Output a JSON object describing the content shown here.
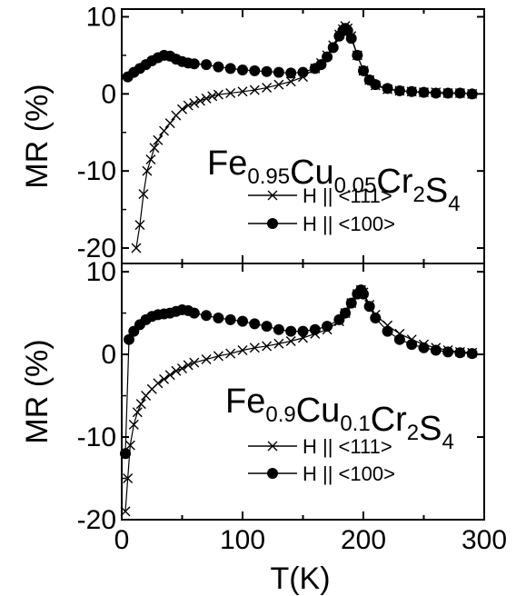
{
  "chart_data": [
    {
      "type": "scatter",
      "panel": "top",
      "formula": {
        "parts": [
          {
            "t": "Fe",
            "sub": false
          },
          {
            "t": "0.95",
            "sub": true
          },
          {
            "t": "Cu",
            "sub": false
          },
          {
            "t": "0.05",
            "sub": true
          },
          {
            "t": "Cr",
            "sub": false
          },
          {
            "t": "2",
            "sub": true
          },
          {
            "t": "S",
            "sub": false
          },
          {
            "t": "4",
            "sub": true
          }
        ]
      },
      "ylabel": "MR (%)",
      "xlim": [
        0,
        300
      ],
      "ylim": [
        -22,
        11
      ],
      "yticks": [
        10,
        0,
        -10,
        -20
      ],
      "yticklabels": [
        "10",
        "0",
        "-10",
        "-20"
      ],
      "legend": [
        {
          "label": "H || <111>",
          "marker": "x"
        },
        {
          "label": "H || <100>",
          "marker": "circle"
        }
      ],
      "legend_position": "right",
      "series": [
        {
          "name": "H || <111>",
          "marker": "x",
          "x": [
            12,
            15,
            18,
            21,
            24,
            27,
            30,
            35,
            40,
            45,
            50,
            55,
            60,
            65,
            70,
            75,
            80,
            90,
            100,
            110,
            120,
            130,
            140,
            150,
            160,
            165,
            170,
            175,
            180,
            183,
            185,
            187,
            190,
            195,
            200,
            205,
            210,
            220,
            230,
            240,
            250,
            260,
            270,
            280,
            290
          ],
          "y": [
            -20,
            -17,
            -13,
            -10,
            -8.5,
            -7,
            -6,
            -4.8,
            -3.8,
            -2.8,
            -2,
            -1.5,
            -1.2,
            -0.9,
            -0.6,
            -0.3,
            -0.1,
            0.1,
            0.3,
            0.5,
            0.8,
            1.2,
            1.6,
            2.2,
            3.3,
            4,
            5,
            6.3,
            7.7,
            8.4,
            8.8,
            8.5,
            7.5,
            5,
            3,
            1.8,
            1.1,
            0.6,
            0.4,
            0.3,
            0.2,
            0.2,
            0.1,
            0.1,
            0
          ]
        },
        {
          "name": "H || <100>",
          "marker": "circle",
          "x": [
            5,
            10,
            15,
            20,
            25,
            30,
            35,
            40,
            45,
            50,
            55,
            60,
            70,
            80,
            90,
            100,
            110,
            120,
            130,
            140,
            150,
            160,
            165,
            170,
            175,
            180,
            183,
            185,
            187,
            190,
            195,
            200,
            205,
            210,
            220,
            230,
            240,
            250,
            260,
            270,
            280,
            290
          ],
          "y": [
            2.2,
            2.8,
            3.3,
            3.8,
            4.3,
            4.7,
            5,
            4.9,
            4.5,
            4.2,
            4,
            3.9,
            3.8,
            3.5,
            3.3,
            3.1,
            3,
            2.9,
            2.8,
            2.7,
            2.8,
            3.3,
            3.8,
            4.8,
            6,
            7.5,
            8.2,
            8.5,
            8.2,
            7.2,
            5,
            3,
            1.8,
            1.2,
            0.7,
            0.4,
            0.3,
            0.2,
            0.1,
            0.1,
            0.1,
            0
          ]
        }
      ]
    },
    {
      "type": "scatter",
      "panel": "bottom",
      "formula": {
        "parts": [
          {
            "t": "Fe",
            "sub": false
          },
          {
            "t": "0.9",
            "sub": true
          },
          {
            "t": "Cu",
            "sub": false
          },
          {
            "t": "0.1",
            "sub": true
          },
          {
            "t": "Cr",
            "sub": false
          },
          {
            "t": "2",
            "sub": true
          },
          {
            "t": "S",
            "sub": false
          },
          {
            "t": "4",
            "sub": true
          }
        ]
      },
      "ylabel": "MR (%)",
      "xlabel": "T(K)",
      "xlim": [
        0,
        300
      ],
      "ylim": [
        -20,
        11
      ],
      "xticks": [
        0,
        100,
        200,
        300
      ],
      "xticklabels": [
        "0",
        "100",
        "200",
        "300"
      ],
      "yticks": [
        10,
        0,
        -10,
        -20
      ],
      "yticklabels": [
        "10",
        "0",
        "-10",
        "-20"
      ],
      "legend": [
        {
          "label": "H || <111>",
          "marker": "x"
        },
        {
          "label": "H || <100>",
          "marker": "circle"
        }
      ],
      "legend_position": "right",
      "series": [
        {
          "name": "H || <111>",
          "marker": "x",
          "x": [
            3,
            5,
            7,
            10,
            13,
            16,
            20,
            25,
            30,
            35,
            40,
            45,
            50,
            55,
            60,
            70,
            80,
            90,
            100,
            110,
            120,
            130,
            140,
            150,
            160,
            170,
            180,
            185,
            190,
            195,
            198,
            200,
            205,
            210,
            220,
            230,
            240,
            250,
            260,
            270,
            280,
            290
          ],
          "y": [
            -19,
            -15,
            -11,
            -8.5,
            -7,
            -6,
            -5,
            -4.2,
            -3.5,
            -3,
            -2.5,
            -2,
            -1.7,
            -1.3,
            -1,
            -0.6,
            -0.2,
            0.1,
            0.5,
            0.8,
            1,
            1.3,
            1.6,
            2,
            2.5,
            3,
            4,
            5,
            6.2,
            7.3,
            7.8,
            7.5,
            6,
            4.8,
            3.5,
            2.5,
            1.8,
            1.2,
            0.8,
            0.5,
            0.3,
            0.2
          ]
        },
        {
          "name": "H || <100>",
          "marker": "circle",
          "x": [
            3,
            6,
            10,
            15,
            20,
            25,
            30,
            35,
            40,
            45,
            50,
            55,
            60,
            70,
            80,
            90,
            100,
            110,
            120,
            130,
            140,
            150,
            160,
            170,
            180,
            185,
            190,
            195,
            198,
            200,
            205,
            210,
            220,
            230,
            240,
            250,
            260,
            270,
            280,
            290
          ],
          "y": [
            -12,
            1.8,
            2.8,
            3.6,
            4.2,
            4.6,
            4.8,
            4.9,
            5,
            5.2,
            5.4,
            5.3,
            5,
            4.7,
            4.4,
            4.2,
            4,
            3.7,
            3.4,
            3,
            2.8,
            2.8,
            3,
            3.4,
            4.2,
            5,
            6.2,
            7.3,
            7.8,
            7.3,
            5.8,
            4.4,
            2.8,
            1.8,
            1.2,
            0.8,
            0.5,
            0.3,
            0.2,
            0.1
          ]
        }
      ]
    }
  ]
}
